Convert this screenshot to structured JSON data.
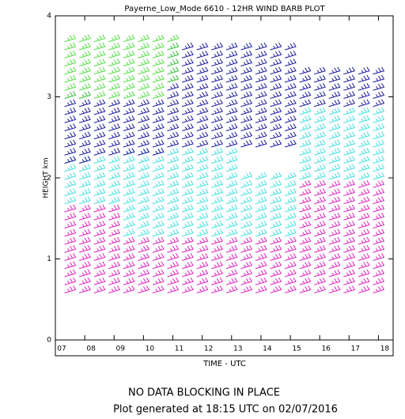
{
  "chart_data": {
    "type": "windbarb",
    "title": "Payerne_Low_Mode 6610 - 12HR WIND BARB PLOT",
    "xlabel": "TIME - UTC",
    "ylabel": "HEIGHT km",
    "footer": "NO DATA BLOCKING IN PLACE",
    "footnote": "Plot generated at 18:15 UTC on 02/07/2016",
    "xlim": [
      7,
      18.5
    ],
    "xticks": [
      {
        "value": 7,
        "label": "07"
      },
      {
        "value": 8,
        "label": "08"
      },
      {
        "value": 9,
        "label": "09"
      },
      10,
      11,
      12,
      13,
      14,
      15,
      16,
      17,
      18
    ],
    "ylim": [
      0,
      4
    ],
    "yticks": [
      0,
      1,
      2,
      3,
      4
    ],
    "x": [
      7.5,
      8,
      8.5,
      9,
      9.5,
      10,
      10.5,
      11,
      11.5,
      12,
      12.5,
      13,
      13.5,
      14,
      14.5,
      15,
      15.5,
      16,
      16.5,
      17,
      17.5,
      18
    ],
    "series": [
      {
        "color": "#e020c0",
        "values": [
          [
            0.6,
            1.6
          ],
          [
            0.6,
            1.6
          ],
          [
            0.6,
            1.6
          ],
          [
            0.6,
            1.6
          ],
          [
            0.6,
            1.2
          ],
          [
            0.6,
            1.2
          ],
          [
            0.6,
            1.2
          ],
          [
            0.6,
            1.2
          ],
          [
            0.6,
            1.2
          ],
          [
            0.6,
            1.2
          ],
          [
            0.6,
            1.2
          ],
          [
            0.6,
            1.2
          ],
          [
            0.6,
            1.2
          ],
          [
            0.6,
            1.2
          ],
          [
            0.6,
            1.2
          ],
          [
            0.6,
            1.2
          ],
          [
            0.6,
            1.9
          ],
          [
            0.6,
            1.9
          ],
          [
            0.6,
            1.9
          ],
          [
            0.6,
            1.9
          ],
          [
            0.6,
            1.9
          ],
          [
            0.6,
            1.9
          ]
        ]
      },
      {
        "color": "#40e0e0",
        "values": [
          [
            1.7,
            2.2
          ],
          [
            1.7,
            2.2
          ],
          [
            1.7,
            2.2
          ],
          [
            1.7,
            2.2
          ],
          [
            1.3,
            2.3
          ],
          [
            1.3,
            2.3
          ],
          [
            1.3,
            2.3
          ],
          [
            1.3,
            2.3
          ],
          [
            1.3,
            2.3
          ],
          [
            1.3,
            2.3
          ],
          [
            1.3,
            2.3
          ],
          [
            1.3,
            2.3
          ],
          [
            1.3,
            2.0
          ],
          [
            1.3,
            2.0
          ],
          [
            1.3,
            2.0
          ],
          [
            1.3,
            2.0
          ],
          [
            2.0,
            2.8
          ],
          [
            2.0,
            2.8
          ],
          [
            2.0,
            2.8
          ],
          [
            2.0,
            2.8
          ],
          [
            2.0,
            2.8
          ],
          [
            2.0,
            2.8
          ]
        ]
      },
      {
        "color": "#1a1aa0",
        "values": [
          [
            2.2,
            3.0
          ],
          [
            2.2,
            3.0
          ],
          [
            2.3,
            2.9
          ],
          [
            2.3,
            2.9
          ],
          [
            2.3,
            2.9
          ],
          [
            2.3,
            2.9
          ],
          [
            2.3,
            2.9
          ],
          [
            2.4,
            3.6
          ],
          [
            2.4,
            3.6
          ],
          [
            2.4,
            3.6
          ],
          [
            2.4,
            3.6
          ],
          [
            2.4,
            3.6
          ],
          [
            2.4,
            3.6
          ],
          [
            2.4,
            3.6
          ],
          [
            2.4,
            3.6
          ],
          [
            2.4,
            3.6
          ],
          [
            2.9,
            3.3
          ],
          [
            2.9,
            3.3
          ],
          [
            2.9,
            3.3
          ],
          [
            2.9,
            3.3
          ],
          [
            2.9,
            3.3
          ],
          [
            2.9,
            3.3
          ]
        ]
      },
      {
        "color": "#50e040",
        "values": [
          [
            3.0,
            3.7
          ],
          [
            3.0,
            3.7
          ],
          [
            3.0,
            3.7
          ],
          [
            3.0,
            3.7
          ],
          [
            3.0,
            3.7
          ],
          [
            3.0,
            3.7
          ],
          [
            3.0,
            3.7
          ],
          [
            3.2,
            3.7
          ],
          null,
          null,
          null,
          null,
          null,
          null,
          null,
          null,
          null,
          null,
          null,
          null,
          null,
          null
        ]
      }
    ]
  }
}
